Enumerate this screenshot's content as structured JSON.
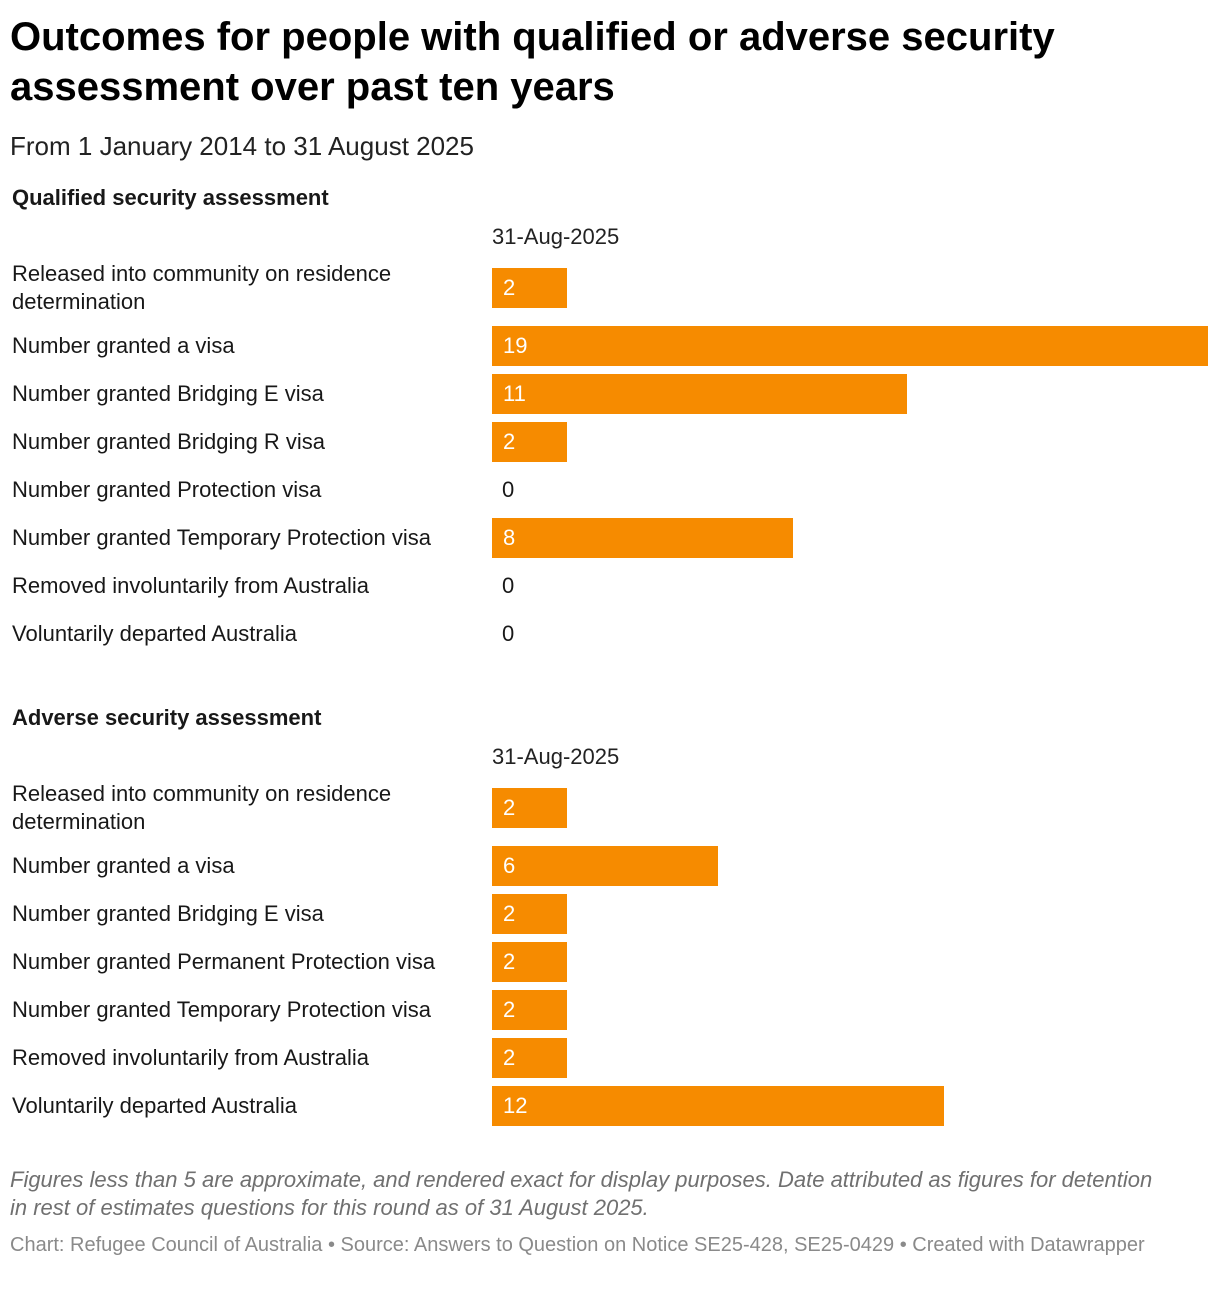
{
  "title": "Outcomes for people with qualified or adverse security assessment over past ten years",
  "subtitle": "From 1 January 2014 to 31 August 2025",
  "colors": {
    "bar": "#f68b00",
    "bar_text": "#ffffff",
    "text": "#181818",
    "notes": "#707070"
  },
  "chart_data": [
    {
      "type": "bar",
      "title": "Qualified security assessment",
      "column": "31-Aug-2025",
      "categories": [
        "Released into community on residence determination",
        "Number granted a visa",
        "Number granted Bridging E visa",
        "Number granted Bridging R visa",
        "Number granted Protection visa",
        "Number granted Temporary Protection visa",
        "Removed involuntarily from Australia",
        "Voluntarily departed Australia"
      ],
      "values": [
        2,
        19,
        11,
        2,
        0,
        8,
        0,
        0
      ],
      "xlim": [
        0,
        19
      ]
    },
    {
      "type": "bar",
      "title": "Adverse security assessment",
      "column": "31-Aug-2025",
      "categories": [
        "Released into community on residence determination",
        "Number granted a visa",
        "Number granted Bridging E visa",
        "Number granted Permanent Protection visa",
        "Number granted Temporary Protection visa",
        "Removed involuntarily from Australia",
        "Voluntarily departed Australia"
      ],
      "values": [
        2,
        6,
        2,
        2,
        2,
        2,
        12
      ],
      "xlim": [
        0,
        19
      ]
    }
  ],
  "notes": "Figures less than 5 are approximate, and rendered exact for display purposes. Date attributed as figures for detention in rest of estimates questions for this round as of 31 August 2025.",
  "byline": "Chart: Refugee Council of Australia • Source: Answers to Question on Notice SE25-428, SE25-0429 • Created with Datawrapper"
}
